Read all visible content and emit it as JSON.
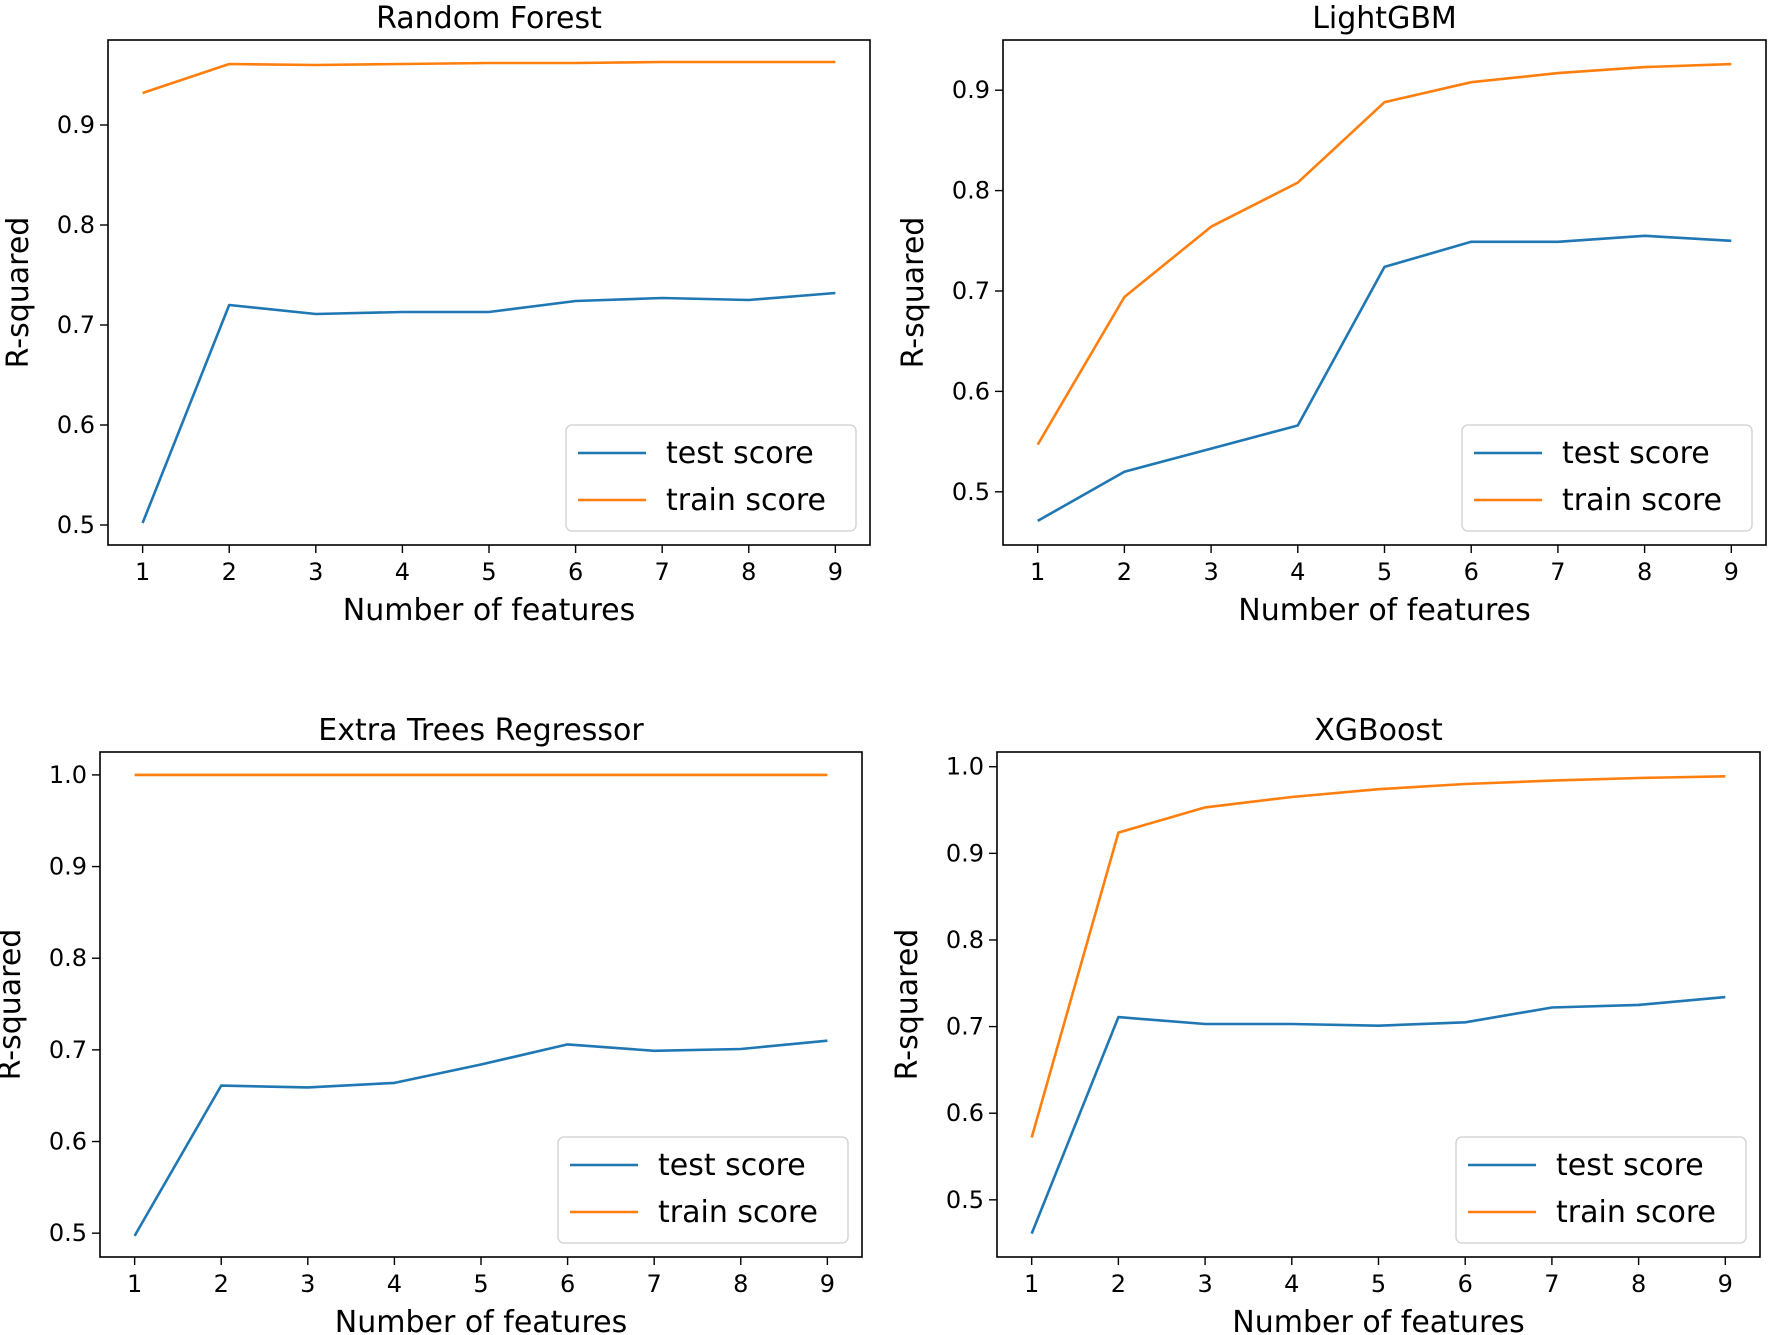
{
  "chart_data": [
    {
      "type": "line",
      "title": "Random Forest",
      "xlabel": "Number of features",
      "ylabel": "R-squared",
      "x": [
        1,
        2,
        3,
        4,
        5,
        6,
        7,
        8,
        9
      ],
      "xlim": [
        0.6,
        9.4
      ],
      "ylim": [
        0.48,
        0.985
      ],
      "yticks": [
        "0.5",
        "0.6",
        "0.7",
        "0.8",
        "0.9"
      ],
      "ytick_values": [
        0.5,
        0.6,
        0.7,
        0.8,
        0.9
      ],
      "legend": "lower-right",
      "series": [
        {
          "name": "test score",
          "color": "#1f77b4",
          "values": [
            0.502,
            0.72,
            0.711,
            0.713,
            0.713,
            0.724,
            0.727,
            0.725,
            0.732
          ]
        },
        {
          "name": "train score",
          "color": "#ff7f0e",
          "values": [
            0.932,
            0.961,
            0.96,
            0.961,
            0.962,
            0.962,
            0.963,
            0.963,
            0.963
          ]
        }
      ]
    },
    {
      "type": "line",
      "title": "LightGBM",
      "xlabel": "Number of features",
      "ylabel": "R-squared",
      "x": [
        1,
        2,
        3,
        4,
        5,
        6,
        7,
        8,
        9
      ],
      "xlim": [
        0.6,
        9.4
      ],
      "ylim": [
        0.447,
        0.95
      ],
      "yticks": [
        "0.5",
        "0.6",
        "0.7",
        "0.8",
        "0.9"
      ],
      "ytick_values": [
        0.5,
        0.6,
        0.7,
        0.8,
        0.9
      ],
      "legend": "lower-right",
      "series": [
        {
          "name": "test score",
          "color": "#1f77b4",
          "values": [
            0.471,
            0.52,
            0.543,
            0.566,
            0.724,
            0.749,
            0.749,
            0.755,
            0.75
          ]
        },
        {
          "name": "train score",
          "color": "#ff7f0e",
          "values": [
            0.547,
            0.694,
            0.764,
            0.808,
            0.888,
            0.908,
            0.917,
            0.923,
            0.926
          ]
        }
      ]
    },
    {
      "type": "line",
      "title": "Extra Trees Regressor",
      "xlabel": "Number of features",
      "ylabel": "R-squared",
      "x": [
        1,
        2,
        3,
        4,
        5,
        6,
        7,
        8,
        9
      ],
      "xlim": [
        0.6,
        9.4
      ],
      "ylim": [
        0.474,
        1.025
      ],
      "yticks": [
        "0.5",
        "0.6",
        "0.7",
        "0.8",
        "0.9",
        "1.0"
      ],
      "ytick_values": [
        0.5,
        0.6,
        0.7,
        0.8,
        0.9,
        1.0
      ],
      "legend": "lower-right",
      "series": [
        {
          "name": "test score",
          "color": "#1f77b4",
          "values": [
            0.497,
            0.661,
            0.659,
            0.664,
            0.684,
            0.706,
            0.699,
            0.701,
            0.71
          ]
        },
        {
          "name": "train score",
          "color": "#ff7f0e",
          "values": [
            1.0,
            1.0,
            1.0,
            1.0,
            1.0,
            1.0,
            1.0,
            1.0,
            1.0
          ]
        }
      ]
    },
    {
      "type": "line",
      "title": "XGBoost",
      "xlabel": "Number of features",
      "ylabel": "R-squared",
      "x": [
        1,
        2,
        3,
        4,
        5,
        6,
        7,
        8,
        9
      ],
      "xlim": [
        0.6,
        9.4
      ],
      "ylim": [
        0.434,
        1.017
      ],
      "yticks": [
        "0.5",
        "0.6",
        "0.7",
        "0.8",
        "0.9",
        "1.0"
      ],
      "ytick_values": [
        0.5,
        0.6,
        0.7,
        0.8,
        0.9,
        1.0
      ],
      "legend": "lower-right",
      "series": [
        {
          "name": "test score",
          "color": "#1f77b4",
          "values": [
            0.461,
            0.711,
            0.703,
            0.703,
            0.701,
            0.705,
            0.722,
            0.725,
            0.734
          ]
        },
        {
          "name": "train score",
          "color": "#ff7f0e",
          "values": [
            0.572,
            0.924,
            0.953,
            0.965,
            0.974,
            0.98,
            0.984,
            0.987,
            0.989
          ]
        }
      ]
    }
  ]
}
